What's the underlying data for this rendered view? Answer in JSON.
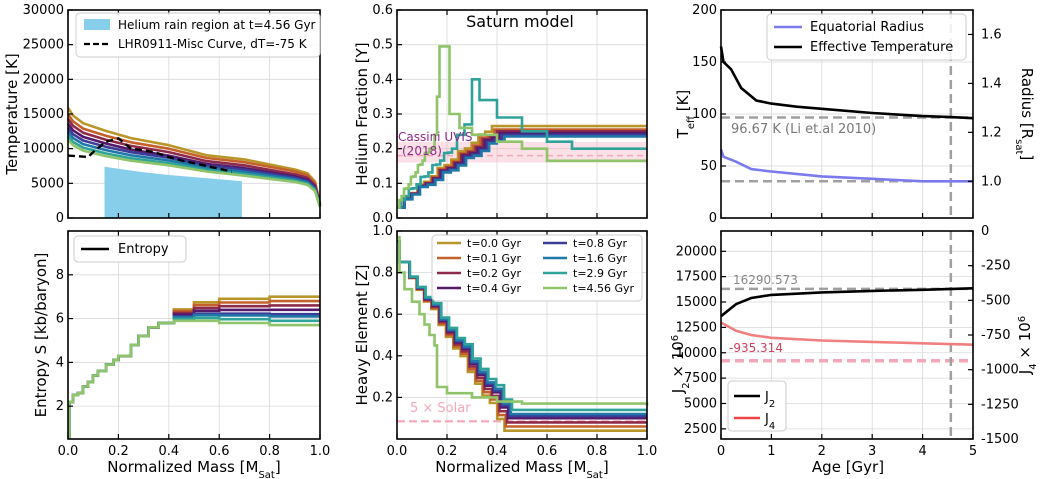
{
  "figure": {
    "gyr_unit": "Gyr",
    "colors": {
      "helium_fill": "#87ceeb",
      "ref_pink": "#f4a7b9",
      "cassini_purple": "#8b2d8b",
      "radius_blue": "#7b7bee",
      "j4_red": "#ee4444",
      "gray": "#a0a0a0"
    }
  },
  "times": {
    "labels": [
      "t=0.0 Gyr",
      "t=0.1 Gyr",
      "t=0.2 Gyr",
      "t=0.4 Gyr",
      "t=0.8 Gyr",
      "t=1.6 Gyr",
      "t=2.9 Gyr",
      "t=4.56 Gyr"
    ],
    "colors": [
      "#b8962a",
      "#c4612b",
      "#8e2b4a",
      "#55196b",
      "#3c3d96",
      "#1f78a8",
      "#2fa39a",
      "#8fc46a"
    ]
  },
  "chart_data": [
    {
      "id": "temperature",
      "type": "line",
      "xlabel": "",
      "ylabel": "Temperature [K]",
      "xlim": [
        0,
        1
      ],
      "ylim": [
        0,
        30000
      ],
      "yticks": [
        "0",
        "5000",
        "10000",
        "15000",
        "20000",
        "25000",
        "30000"
      ],
      "xticks": [
        "",
        "",
        "",
        "",
        "",
        ""
      ],
      "legend": [
        "Helium rain region at t=4.56 Gyr",
        "LHR0911-Misc Curve, dT=-75 K"
      ],
      "helium_region": {
        "x": [
          0.145,
          0.69
        ],
        "top": [
          [
            0.145,
            7400
          ],
          [
            0.2,
            7100
          ],
          [
            0.3,
            6600
          ],
          [
            0.4,
            6200
          ],
          [
            0.5,
            5900
          ],
          [
            0.6,
            5600
          ],
          [
            0.69,
            5300
          ]
        ]
      },
      "lhr_curve": [
        [
          0,
          9000
        ],
        [
          0.08,
          8800
        ],
        [
          0.1,
          9500
        ],
        [
          0.15,
          11000
        ],
        [
          0.2,
          11500
        ],
        [
          0.25,
          10000
        ],
        [
          0.3,
          9800
        ],
        [
          0.35,
          9400
        ],
        [
          0.4,
          8800
        ],
        [
          0.45,
          8300
        ],
        [
          0.5,
          7900
        ],
        [
          0.55,
          7500
        ],
        [
          0.6,
          7100
        ],
        [
          0.65,
          6700
        ]
      ],
      "series_end_T": [
        15900,
        15000,
        14300,
        13600,
        13000,
        12400,
        11800,
        11300
      ],
      "series_mid_T": [
        10500,
        10000,
        9500,
        9000,
        8700,
        8300,
        7900,
        7600
      ],
      "series_90_T": [
        7000,
        6700,
        6300,
        6000,
        5800,
        5600,
        5400,
        5200
      ]
    },
    {
      "id": "helium",
      "type": "line",
      "title": "Saturn model",
      "ylabel": "Helium Fraction [Y]",
      "xlim": [
        0,
        1
      ],
      "ylim": [
        0,
        0.6
      ],
      "yticks": [
        "0.0",
        "0.1",
        "0.2",
        "0.3",
        "0.4",
        "0.5",
        "0.6"
      ],
      "xticks": [
        "",
        "",
        "",
        "",
        "",
        ""
      ],
      "cassini": {
        "label_1": "Cassini UVIS",
        "label_2": "(2018)",
        "band": [
          0.16,
          0.22
        ],
        "mean": 0.18
      },
      "final_Y": [
        0.265,
        0.255,
        0.25,
        0.245,
        0.24,
        0.235,
        0.2,
        0.165
      ],
      "peak": {
        "t4.56": {
          "x": 0.2,
          "y": 0.495
        },
        "t2.9": {
          "x": 0.3,
          "y": 0.4
        }
      }
    },
    {
      "id": "teff_radius",
      "type": "line",
      "ylabel": "T_eff [K]",
      "ylabel_right": "Radius [R_Sat]",
      "xlim": [
        0,
        5
      ],
      "ylim": [
        0,
        200
      ],
      "ylim_right": [
        0.85,
        1.7
      ],
      "yticks": [
        "0",
        "50",
        "100",
        "150",
        "200"
      ],
      "yticks_right": [
        "1.0",
        "1.2",
        "1.4",
        "1.6"
      ],
      "xticks": [
        "",
        "",
        "",
        "",
        "",
        ""
      ],
      "legend": [
        "Equatorial Radius",
        "Effective Temperature"
      ],
      "ref_teff": 96.67,
      "ref_label": "96.67 K (Li et.al 2010)",
      "ref_radius": 1.0,
      "age_marker": 4.56,
      "teff": [
        [
          0,
          165
        ],
        [
          0.05,
          150
        ],
        [
          0.2,
          143
        ],
        [
          0.4,
          125
        ],
        [
          0.7,
          113
        ],
        [
          1,
          110
        ],
        [
          1.5,
          107
        ],
        [
          2,
          105
        ],
        [
          3,
          101
        ],
        [
          4,
          98
        ],
        [
          4.56,
          97
        ],
        [
          5,
          96
        ]
      ],
      "radius": [
        [
          0,
          1.13
        ],
        [
          0.05,
          1.1
        ],
        [
          0.3,
          1.08
        ],
        [
          0.6,
          1.05
        ],
        [
          1,
          1.04
        ],
        [
          2,
          1.02
        ],
        [
          3,
          1.01
        ],
        [
          4,
          1.0
        ],
        [
          5,
          1.0
        ]
      ]
    },
    {
      "id": "entropy",
      "type": "line",
      "xlabel": "Normalized Mass [M_Sat]",
      "ylabel": "Entropy S [kb/baryon]",
      "xlim": [
        0,
        1
      ],
      "ylim": [
        0.5,
        10
      ],
      "yticks": [
        "2",
        "4",
        "6",
        "8"
      ],
      "xticks": [
        "0.0",
        "0.2",
        "0.4",
        "0.6",
        "0.8",
        "1.0"
      ],
      "legend": [
        "Entropy"
      ],
      "final_S": [
        7.0,
        6.8,
        6.6,
        6.4,
        6.2,
        6.1,
        5.9,
        5.7
      ]
    },
    {
      "id": "heavy",
      "type": "line",
      "xlabel": "Normalized Mass [M_Sat]",
      "ylabel": "Heavy Element [Z]",
      "xlim": [
        0,
        1
      ],
      "ylim": [
        0,
        1
      ],
      "yticks": [
        "0.2",
        "0.4",
        "0.6",
        "0.8",
        "1.0"
      ],
      "xticks": [
        "0.0",
        "0.2",
        "0.4",
        "0.6",
        "0.8",
        "1.0"
      ],
      "solar_label": "5 × Solar",
      "solar_Z": 0.085,
      "final_Z": [
        0.04,
        0.06,
        0.08,
        0.1,
        0.11,
        0.12,
        0.14,
        0.16
      ]
    },
    {
      "id": "j2_j4",
      "type": "line",
      "xlabel": "Age [Gyr]",
      "ylabel": "J_2 × 10^6",
      "ylabel_right": "J_4 × 10^6",
      "xlim": [
        0,
        5
      ],
      "ylim": [
        1500,
        22000
      ],
      "ylim_right": [
        -1500,
        0
      ],
      "yticks": [
        "2500",
        "5000",
        "7500",
        "10000",
        "12500",
        "15000",
        "17500",
        "20000"
      ],
      "yticks_right": [
        "-1500",
        "-1250",
        "-1000",
        "-750",
        "-500",
        "-250",
        "0"
      ],
      "xticks": [
        "0",
        "1",
        "2",
        "3",
        "4",
        "5"
      ],
      "legend": [
        "J_2",
        "J_4"
      ],
      "ref_j2": 16290.573,
      "ref_j2_label": "16290.573",
      "ref_j4": -935.314,
      "ref_j4_label": "-935.314",
      "age_marker": 4.56,
      "j2": [
        [
          0,
          13600
        ],
        [
          0.1,
          14000
        ],
        [
          0.3,
          14800
        ],
        [
          0.6,
          15400
        ],
        [
          1,
          15700
        ],
        [
          2,
          15950
        ],
        [
          3,
          16100
        ],
        [
          4,
          16200
        ],
        [
          5,
          16350
        ]
      ],
      "j4": [
        [
          0,
          -660
        ],
        [
          0.1,
          -680
        ],
        [
          0.3,
          -720
        ],
        [
          0.6,
          -750
        ],
        [
          1,
          -770
        ],
        [
          2,
          -790
        ],
        [
          3,
          -800
        ],
        [
          4,
          -810
        ],
        [
          5,
          -820
        ]
      ]
    }
  ]
}
